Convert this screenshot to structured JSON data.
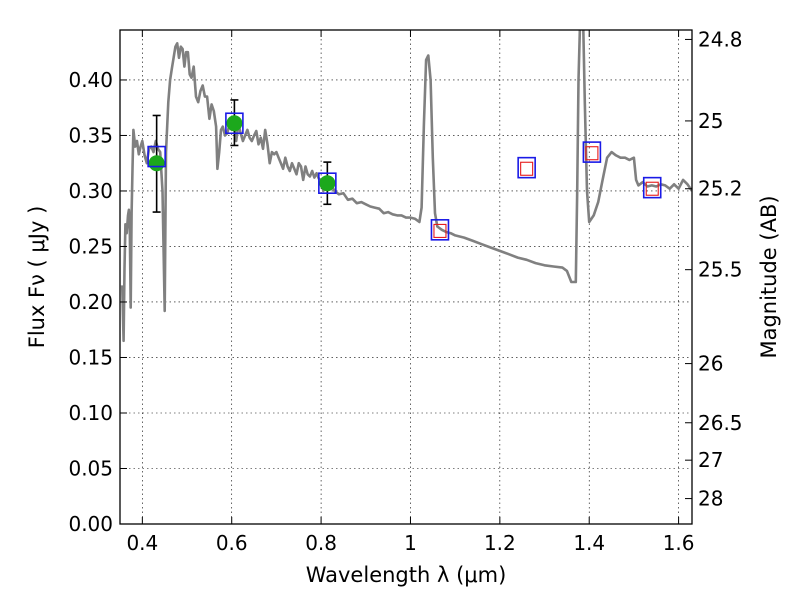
{
  "chart_data": {
    "type": "scatter",
    "xlabel": "Wavelength  λ (μm)",
    "ylabel": "Flux  Fν  ( μJy )",
    "y2label": "Magnitude (AB)",
    "xlim": [
      0.35,
      1.63
    ],
    "ylim": [
      0.0,
      0.445
    ],
    "grid": true,
    "x_ticks": [
      {
        "value": 0.4,
        "label": "0.4"
      },
      {
        "value": 0.6,
        "label": "0.6"
      },
      {
        "value": 0.8,
        "label": "0.8"
      },
      {
        "value": 1.0,
        "label": "1"
      },
      {
        "value": 1.2,
        "label": "1.2"
      },
      {
        "value": 1.4,
        "label": "1.4"
      },
      {
        "value": 1.6,
        "label": "1.6"
      }
    ],
    "y_ticks": [
      {
        "value": 0.0,
        "label": "0.00"
      },
      {
        "value": 0.05,
        "label": "0.05"
      },
      {
        "value": 0.1,
        "label": "0.10"
      },
      {
        "value": 0.15,
        "label": "0.15"
      },
      {
        "value": 0.2,
        "label": "0.20"
      },
      {
        "value": 0.25,
        "label": "0.25"
      },
      {
        "value": 0.3,
        "label": "0.30"
      },
      {
        "value": 0.35,
        "label": "0.35"
      },
      {
        "value": 0.4,
        "label": "0.40"
      }
    ],
    "mag_ticks": [
      {
        "label": "24.8",
        "flux": 0.4365
      },
      {
        "label": "25",
        "flux": 0.3631
      },
      {
        "label": "25.2",
        "flux": 0.302
      },
      {
        "label": "25.5",
        "flux": 0.2291
      },
      {
        "label": "26",
        "flux": 0.1445
      },
      {
        "label": "26.5",
        "flux": 0.0912
      },
      {
        "label": "27",
        "flux": 0.0575
      },
      {
        "label": "28",
        "flux": 0.0229
      }
    ],
    "series": [
      {
        "name": "model spectrum",
        "style": "line",
        "color": "#808080",
        "points": [
          [
            0.355,
            0.215
          ],
          [
            0.358,
            0.165
          ],
          [
            0.36,
            0.23
          ],
          [
            0.362,
            0.27
          ],
          [
            0.365,
            0.262
          ],
          [
            0.368,
            0.278
          ],
          [
            0.37,
            0.283
          ],
          [
            0.372,
            0.265
          ],
          [
            0.374,
            0.195
          ],
          [
            0.376,
            0.28
          ],
          [
            0.378,
            0.32
          ],
          [
            0.38,
            0.355
          ],
          [
            0.384,
            0.34
          ],
          [
            0.388,
            0.345
          ],
          [
            0.392,
            0.333
          ],
          [
            0.396,
            0.34
          ],
          [
            0.4,
            0.345
          ],
          [
            0.405,
            0.332
          ],
          [
            0.41,
            0.325
          ],
          [
            0.415,
            0.338
          ],
          [
            0.42,
            0.34
          ],
          [
            0.425,
            0.335
          ],
          [
            0.43,
            0.345
          ],
          [
            0.435,
            0.338
          ],
          [
            0.44,
            0.335
          ],
          [
            0.445,
            0.3
          ],
          [
            0.45,
            0.192
          ],
          [
            0.453,
            0.335
          ],
          [
            0.458,
            0.38
          ],
          [
            0.462,
            0.4
          ],
          [
            0.466,
            0.41
          ],
          [
            0.47,
            0.42
          ],
          [
            0.474,
            0.43
          ],
          [
            0.478,
            0.433
          ],
          [
            0.482,
            0.42
          ],
          [
            0.486,
            0.43
          ],
          [
            0.49,
            0.428
          ],
          [
            0.494,
            0.412
          ],
          [
            0.498,
            0.425
          ],
          [
            0.502,
            0.425
          ],
          [
            0.506,
            0.405
          ],
          [
            0.51,
            0.402
          ],
          [
            0.515,
            0.412
          ],
          [
            0.52,
            0.385
          ],
          [
            0.525,
            0.38
          ],
          [
            0.53,
            0.39
          ],
          [
            0.535,
            0.395
          ],
          [
            0.54,
            0.385
          ],
          [
            0.545,
            0.385
          ],
          [
            0.55,
            0.365
          ],
          [
            0.555,
            0.378
          ],
          [
            0.56,
            0.372
          ],
          [
            0.565,
            0.358
          ],
          [
            0.568,
            0.32
          ],
          [
            0.572,
            0.335
          ],
          [
            0.576,
            0.355
          ],
          [
            0.58,
            0.358
          ],
          [
            0.585,
            0.35
          ],
          [
            0.59,
            0.352
          ],
          [
            0.595,
            0.36
          ],
          [
            0.6,
            0.355
          ],
          [
            0.605,
            0.358
          ],
          [
            0.61,
            0.345
          ],
          [
            0.615,
            0.36
          ],
          [
            0.62,
            0.352
          ],
          [
            0.625,
            0.345
          ],
          [
            0.63,
            0.35
          ],
          [
            0.635,
            0.355
          ],
          [
            0.64,
            0.348
          ],
          [
            0.645,
            0.345
          ],
          [
            0.65,
            0.35
          ],
          [
            0.655,
            0.354
          ],
          [
            0.66,
            0.342
          ],
          [
            0.665,
            0.348
          ],
          [
            0.67,
            0.338
          ],
          [
            0.675,
            0.355
          ],
          [
            0.68,
            0.342
          ],
          [
            0.685,
            0.325
          ],
          [
            0.69,
            0.335
          ],
          [
            0.695,
            0.333
          ],
          [
            0.7,
            0.335
          ],
          [
            0.705,
            0.33
          ],
          [
            0.71,
            0.325
          ],
          [
            0.715,
            0.32
          ],
          [
            0.72,
            0.33
          ],
          [
            0.725,
            0.322
          ],
          [
            0.73,
            0.318
          ],
          [
            0.735,
            0.325
          ],
          [
            0.74,
            0.32
          ],
          [
            0.745,
            0.315
          ],
          [
            0.75,
            0.325
          ],
          [
            0.755,
            0.322
          ],
          [
            0.76,
            0.31
          ],
          [
            0.765,
            0.322
          ],
          [
            0.77,
            0.315
          ],
          [
            0.775,
            0.313
          ],
          [
            0.78,
            0.318
          ],
          [
            0.785,
            0.312
          ],
          [
            0.79,
            0.316
          ],
          [
            0.795,
            0.311
          ],
          [
            0.8,
            0.31
          ],
          [
            0.805,
            0.3
          ],
          [
            0.81,
            0.305
          ],
          [
            0.815,
            0.302
          ],
          [
            0.82,
            0.308
          ],
          [
            0.83,
            0.3
          ],
          [
            0.84,
            0.297
          ],
          [
            0.85,
            0.298
          ],
          [
            0.86,
            0.292
          ],
          [
            0.87,
            0.293
          ],
          [
            0.88,
            0.289
          ],
          [
            0.89,
            0.29
          ],
          [
            0.9,
            0.288
          ],
          [
            0.91,
            0.286
          ],
          [
            0.92,
            0.285
          ],
          [
            0.93,
            0.284
          ],
          [
            0.94,
            0.28
          ],
          [
            0.95,
            0.281
          ],
          [
            0.96,
            0.279
          ],
          [
            0.97,
            0.278
          ],
          [
            0.98,
            0.278
          ],
          [
            0.99,
            0.276
          ],
          [
            1.0,
            0.276
          ],
          [
            1.01,
            0.275
          ],
          [
            1.02,
            0.272
          ],
          [
            1.025,
            0.285
          ],
          [
            1.03,
            0.36
          ],
          [
            1.035,
            0.418
          ],
          [
            1.04,
            0.422
          ],
          [
            1.045,
            0.4
          ],
          [
            1.05,
            0.33
          ],
          [
            1.055,
            0.28
          ],
          [
            1.06,
            0.268
          ],
          [
            1.07,
            0.265
          ],
          [
            1.08,
            0.263
          ],
          [
            1.09,
            0.262
          ],
          [
            1.1,
            0.26
          ],
          [
            1.12,
            0.258
          ],
          [
            1.14,
            0.255
          ],
          [
            1.16,
            0.252
          ],
          [
            1.18,
            0.249
          ],
          [
            1.2,
            0.246
          ],
          [
            1.22,
            0.243
          ],
          [
            1.24,
            0.24
          ],
          [
            1.26,
            0.238
          ],
          [
            1.28,
            0.235
          ],
          [
            1.3,
            0.233
          ],
          [
            1.32,
            0.232
          ],
          [
            1.34,
            0.231
          ],
          [
            1.35,
            0.228
          ],
          [
            1.36,
            0.218
          ],
          [
            1.37,
            0.218
          ],
          [
            1.373,
            0.3
          ],
          [
            1.376,
            0.4
          ],
          [
            1.38,
            0.46
          ],
          [
            1.386,
            0.46
          ],
          [
            1.39,
            0.38
          ],
          [
            1.395,
            0.3
          ],
          [
            1.4,
            0.272
          ],
          [
            1.41,
            0.278
          ],
          [
            1.42,
            0.29
          ],
          [
            1.43,
            0.31
          ],
          [
            1.44,
            0.33
          ],
          [
            1.45,
            0.335
          ],
          [
            1.46,
            0.332
          ],
          [
            1.47,
            0.33
          ],
          [
            1.48,
            0.33
          ],
          [
            1.49,
            0.328
          ],
          [
            1.5,
            0.33
          ],
          [
            1.505,
            0.31
          ],
          [
            1.51,
            0.305
          ],
          [
            1.52,
            0.308
          ],
          [
            1.53,
            0.304
          ],
          [
            1.54,
            0.305
          ],
          [
            1.55,
            0.304
          ],
          [
            1.56,
            0.306
          ],
          [
            1.57,
            0.305
          ],
          [
            1.58,
            0.302
          ],
          [
            1.59,
            0.306
          ],
          [
            1.6,
            0.302
          ],
          [
            1.61,
            0.31
          ],
          [
            1.62,
            0.306
          ],
          [
            1.63,
            0.3
          ]
        ]
      },
      {
        "name": "green points",
        "style": "marker-circle-errorbar",
        "color": "#1ca81c",
        "points": [
          {
            "x": 0.432,
            "y": 0.325,
            "yerr": [
              0.281,
              0.368
            ]
          },
          {
            "x": 0.606,
            "y": 0.361,
            "yerr": [
              0.341,
              0.382
            ]
          },
          {
            "x": 0.814,
            "y": 0.307,
            "yerr": [
              0.288,
              0.326
            ]
          }
        ]
      },
      {
        "name": "blue squares",
        "style": "marker-square",
        "color": "#1a1ae6",
        "points": [
          [
            0.432,
            0.331
          ],
          [
            0.606,
            0.361
          ],
          [
            0.814,
            0.307
          ],
          [
            1.066,
            0.265
          ],
          [
            1.26,
            0.321
          ],
          [
            1.406,
            0.335
          ],
          [
            1.541,
            0.303
          ]
        ]
      },
      {
        "name": "red squares",
        "style": "marker-square-small",
        "color": "#e61a1a",
        "points": [
          [
            1.066,
            0.264
          ],
          [
            1.26,
            0.32
          ],
          [
            1.406,
            0.334
          ],
          [
            1.541,
            0.302
          ]
        ]
      }
    ]
  }
}
